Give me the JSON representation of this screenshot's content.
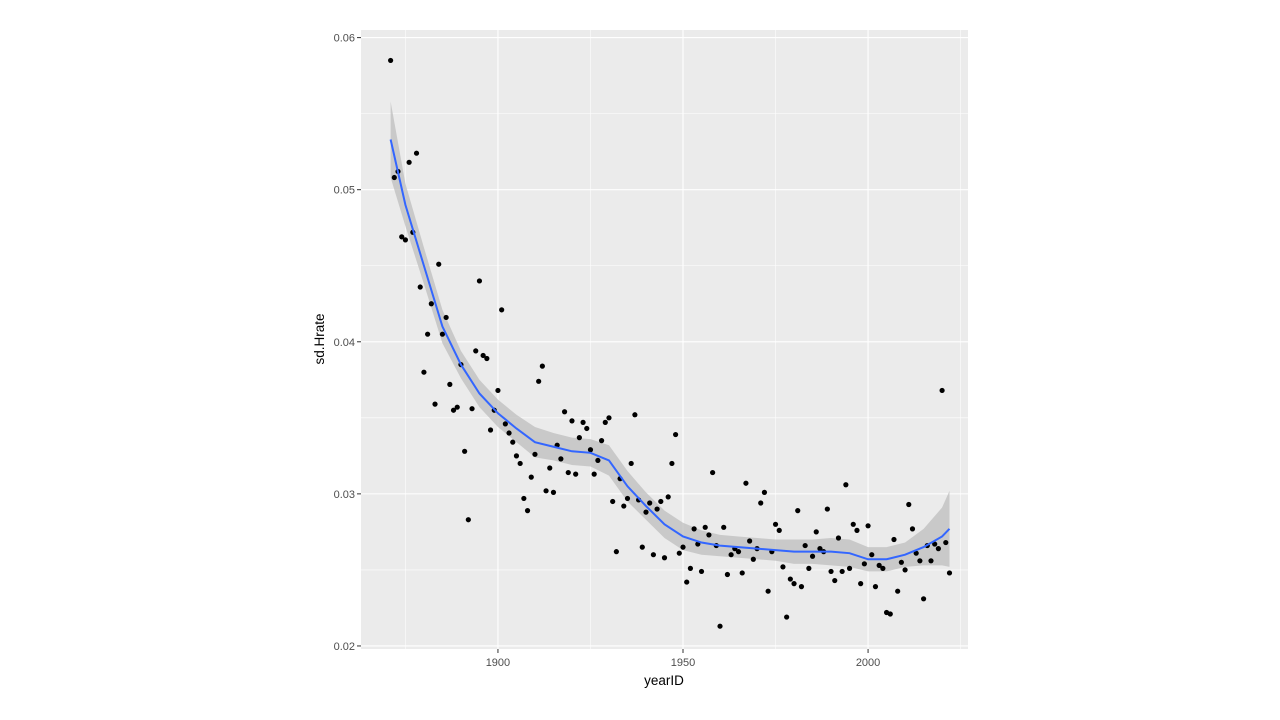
{
  "chart_data": {
    "type": "scatter",
    "title": "",
    "xlabel": "yearID",
    "ylabel": "sd.Hrate",
    "xlim": [
      1863,
      2027
    ],
    "ylim": [
      0.0198,
      0.0605
    ],
    "x_ticks": [
      1900,
      1950,
      2000
    ],
    "x_tick_labels": [
      "1900",
      "1950",
      "2000"
    ],
    "y_ticks": [
      0.02,
      0.03,
      0.04,
      0.05,
      0.06
    ],
    "y_tick_labels": [
      "0.02",
      "0.03",
      "0.04",
      "0.05",
      "0.06"
    ],
    "grid": true,
    "colors": {
      "panel": "#ebebeb",
      "grid_major": "#ffffff",
      "points": "#000000",
      "smooth_line": "#3366ff",
      "ribbon": "#bdbdbd"
    },
    "points": [
      [
        1871,
        0.0585
      ],
      [
        1872,
        0.0508
      ],
      [
        1873,
        0.0512
      ],
      [
        1874,
        0.0469
      ],
      [
        1875,
        0.0467
      ],
      [
        1876,
        0.0518
      ],
      [
        1877,
        0.0472
      ],
      [
        1878,
        0.0524
      ],
      [
        1879,
        0.0436
      ],
      [
        1880,
        0.038
      ],
      [
        1881,
        0.0405
      ],
      [
        1882,
        0.0425
      ],
      [
        1883,
        0.0359
      ],
      [
        1884,
        0.0451
      ],
      [
        1885,
        0.0405
      ],
      [
        1886,
        0.0416
      ],
      [
        1887,
        0.0372
      ],
      [
        1888,
        0.0355
      ],
      [
        1889,
        0.0357
      ],
      [
        1890,
        0.0385
      ],
      [
        1891,
        0.0328
      ],
      [
        1892,
        0.0283
      ],
      [
        1893,
        0.0356
      ],
      [
        1894,
        0.0394
      ],
      [
        1895,
        0.044
      ],
      [
        1896,
        0.0391
      ],
      [
        1897,
        0.0389
      ],
      [
        1898,
        0.0342
      ],
      [
        1899,
        0.0355
      ],
      [
        1900,
        0.0368
      ],
      [
        1901,
        0.0421
      ],
      [
        1902,
        0.0346
      ],
      [
        1903,
        0.034
      ],
      [
        1904,
        0.0334
      ],
      [
        1905,
        0.0325
      ],
      [
        1906,
        0.032
      ],
      [
        1907,
        0.0297
      ],
      [
        1908,
        0.0289
      ],
      [
        1909,
        0.0311
      ],
      [
        1910,
        0.0326
      ],
      [
        1911,
        0.0374
      ],
      [
        1912,
        0.0384
      ],
      [
        1913,
        0.0302
      ],
      [
        1914,
        0.0317
      ],
      [
        1915,
        0.0301
      ],
      [
        1916,
        0.0332
      ],
      [
        1917,
        0.0323
      ],
      [
        1918,
        0.0354
      ],
      [
        1919,
        0.0314
      ],
      [
        1920,
        0.0348
      ],
      [
        1921,
        0.0313
      ],
      [
        1922,
        0.0337
      ],
      [
        1923,
        0.0347
      ],
      [
        1924,
        0.0343
      ],
      [
        1925,
        0.0329
      ],
      [
        1926,
        0.0313
      ],
      [
        1927,
        0.0322
      ],
      [
        1928,
        0.0335
      ],
      [
        1929,
        0.0347
      ],
      [
        1930,
        0.035
      ],
      [
        1931,
        0.0295
      ],
      [
        1932,
        0.0262
      ],
      [
        1933,
        0.031
      ],
      [
        1934,
        0.0292
      ],
      [
        1935,
        0.0297
      ],
      [
        1936,
        0.032
      ],
      [
        1937,
        0.0352
      ],
      [
        1938,
        0.0296
      ],
      [
        1939,
        0.0265
      ],
      [
        1940,
        0.0288
      ],
      [
        1941,
        0.0294
      ],
      [
        1942,
        0.026
      ],
      [
        1943,
        0.029
      ],
      [
        1944,
        0.0295
      ],
      [
        1945,
        0.0258
      ],
      [
        1946,
        0.0298
      ],
      [
        1947,
        0.032
      ],
      [
        1948,
        0.0339
      ],
      [
        1949,
        0.0261
      ],
      [
        1950,
        0.0265
      ],
      [
        1951,
        0.0242
      ],
      [
        1952,
        0.0251
      ],
      [
        1953,
        0.0277
      ],
      [
        1954,
        0.0267
      ],
      [
        1955,
        0.0249
      ],
      [
        1956,
        0.0278
      ],
      [
        1957,
        0.0273
      ],
      [
        1958,
        0.0314
      ],
      [
        1959,
        0.0266
      ],
      [
        1960,
        0.0213
      ],
      [
        1961,
        0.0278
      ],
      [
        1962,
        0.0247
      ],
      [
        1963,
        0.026
      ],
      [
        1964,
        0.0264
      ],
      [
        1965,
        0.0262
      ],
      [
        1966,
        0.0248
      ],
      [
        1967,
        0.0307
      ],
      [
        1968,
        0.0269
      ],
      [
        1969,
        0.0257
      ],
      [
        1970,
        0.0264
      ],
      [
        1971,
        0.0294
      ],
      [
        1972,
        0.0301
      ],
      [
        1973,
        0.0236
      ],
      [
        1974,
        0.0262
      ],
      [
        1975,
        0.028
      ],
      [
        1976,
        0.0276
      ],
      [
        1977,
        0.0252
      ],
      [
        1978,
        0.0219
      ],
      [
        1979,
        0.0244
      ],
      [
        1980,
        0.0241
      ],
      [
        1981,
        0.0289
      ],
      [
        1982,
        0.0239
      ],
      [
        1983,
        0.0266
      ],
      [
        1984,
        0.0251
      ],
      [
        1985,
        0.0259
      ],
      [
        1986,
        0.0275
      ],
      [
        1987,
        0.0264
      ],
      [
        1988,
        0.0262
      ],
      [
        1989,
        0.029
      ],
      [
        1990,
        0.0249
      ],
      [
        1991,
        0.0243
      ],
      [
        1992,
        0.0271
      ],
      [
        1993,
        0.0249
      ],
      [
        1994,
        0.0306
      ],
      [
        1995,
        0.0251
      ],
      [
        1996,
        0.028
      ],
      [
        1997,
        0.0276
      ],
      [
        1998,
        0.0241
      ],
      [
        1999,
        0.0254
      ],
      [
        2000,
        0.0279
      ],
      [
        2001,
        0.026
      ],
      [
        2002,
        0.0239
      ],
      [
        2003,
        0.0253
      ],
      [
        2004,
        0.0251
      ],
      [
        2005,
        0.0222
      ],
      [
        2006,
        0.0221
      ],
      [
        2007,
        0.027
      ],
      [
        2008,
        0.0236
      ],
      [
        2009,
        0.0255
      ],
      [
        2010,
        0.025
      ],
      [
        2011,
        0.0293
      ],
      [
        2012,
        0.0277
      ],
      [
        2013,
        0.0261
      ],
      [
        2014,
        0.0256
      ],
      [
        2015,
        0.0231
      ],
      [
        2016,
        0.0266
      ],
      [
        2017,
        0.0256
      ],
      [
        2018,
        0.0267
      ],
      [
        2019,
        0.0264
      ],
      [
        2020,
        0.0368
      ],
      [
        2021,
        0.0268
      ],
      [
        2022,
        0.0248
      ]
    ],
    "smooth": {
      "x": [
        1871,
        1875,
        1880,
        1885,
        1890,
        1895,
        1900,
        1905,
        1910,
        1915,
        1920,
        1925,
        1930,
        1935,
        1940,
        1945,
        1950,
        1955,
        1960,
        1965,
        1970,
        1975,
        1980,
        1985,
        1990,
        1995,
        2000,
        2005,
        2010,
        2015,
        2020,
        2022
      ],
      "y": [
        0.0533,
        0.049,
        0.045,
        0.041,
        0.0385,
        0.0366,
        0.0353,
        0.0343,
        0.0334,
        0.0331,
        0.0328,
        0.0327,
        0.0322,
        0.0305,
        0.0292,
        0.028,
        0.0272,
        0.0268,
        0.0266,
        0.0265,
        0.0264,
        0.0263,
        0.0262,
        0.0262,
        0.0262,
        0.0261,
        0.0257,
        0.0257,
        0.026,
        0.0265,
        0.0272,
        0.0277
      ],
      "upper": [
        0.0558,
        0.0504,
        0.0462,
        0.0421,
        0.0394,
        0.0375,
        0.0362,
        0.0352,
        0.0344,
        0.034,
        0.0337,
        0.0336,
        0.0332,
        0.0315,
        0.0301,
        0.0289,
        0.0281,
        0.0276,
        0.0273,
        0.0272,
        0.0271,
        0.027,
        0.027,
        0.027,
        0.0271,
        0.027,
        0.0265,
        0.0265,
        0.0268,
        0.0277,
        0.0291,
        0.0302
      ],
      "lower": [
        0.0508,
        0.0476,
        0.0438,
        0.0399,
        0.0376,
        0.0357,
        0.0344,
        0.0334,
        0.0324,
        0.0322,
        0.0319,
        0.0318,
        0.0312,
        0.0295,
        0.0283,
        0.0271,
        0.0263,
        0.026,
        0.0259,
        0.0258,
        0.0257,
        0.0256,
        0.0254,
        0.0254,
        0.0253,
        0.0252,
        0.0249,
        0.0249,
        0.0252,
        0.0253,
        0.0253,
        0.0252
      ]
    }
  }
}
